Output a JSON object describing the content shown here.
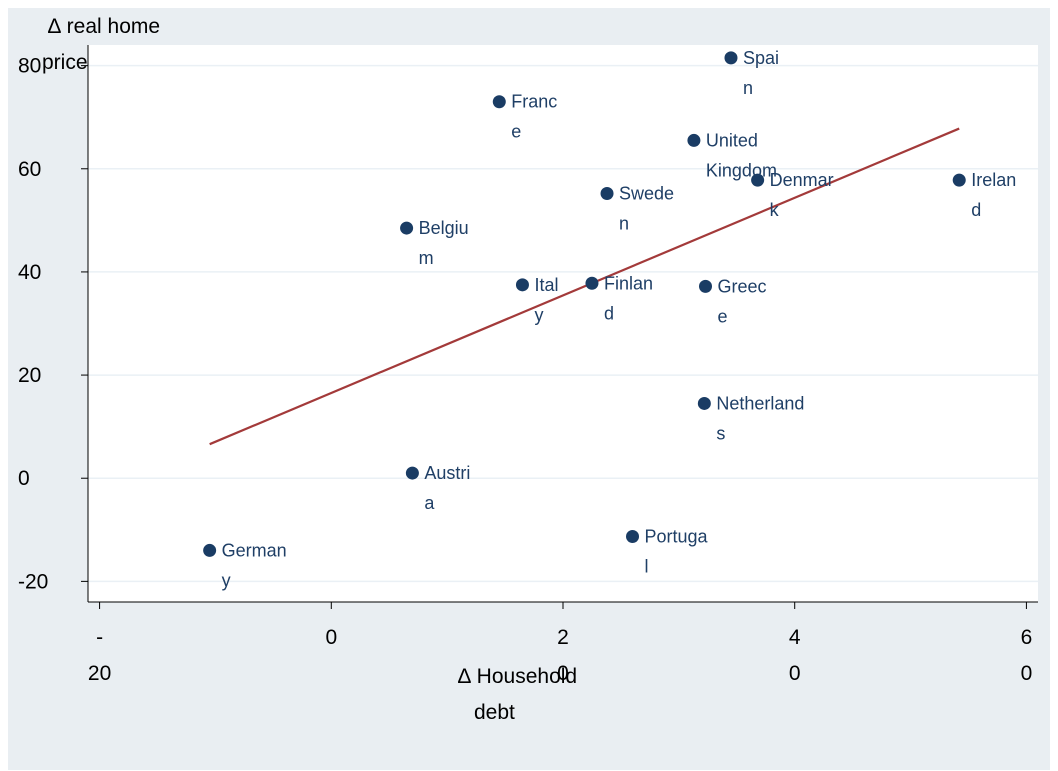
{
  "chart_data": {
    "type": "scatter",
    "title": "",
    "xlabel": "∆ Household debt",
    "ylabel": "∆ real home price",
    "xlim": [
      -21,
      61
    ],
    "ylim": [
      -24,
      84
    ],
    "x_ticks": [
      -20,
      0,
      20,
      40,
      60
    ],
    "y_ticks": [
      -20,
      0,
      20,
      40,
      60,
      80
    ],
    "grid": true,
    "colors": {
      "point": "#1a3c64",
      "fit_line": "#a33a3a",
      "grid": "#eaf0f5",
      "frame": "#e9eef2",
      "label": "#1f3f66"
    },
    "points": [
      {
        "name": "Spain",
        "x": 34.5,
        "y": 81.5
      },
      {
        "name": "France",
        "x": 14.5,
        "y": 73.0
      },
      {
        "name": "United Kingdom",
        "x": 31.3,
        "y": 65.5
      },
      {
        "name": "Denmark",
        "x": 36.8,
        "y": 57.8
      },
      {
        "name": "Ireland",
        "x": 54.2,
        "y": 57.8
      },
      {
        "name": "Sweden",
        "x": 23.8,
        "y": 55.2
      },
      {
        "name": "Belgium",
        "x": 6.5,
        "y": 48.5
      },
      {
        "name": "Italy",
        "x": 16.5,
        "y": 37.5
      },
      {
        "name": "Finland",
        "x": 22.5,
        "y": 37.8
      },
      {
        "name": "Greece",
        "x": 32.3,
        "y": 37.2
      },
      {
        "name": "Netherlands",
        "x": 32.2,
        "y": 14.5
      },
      {
        "name": "Austria",
        "x": 7.0,
        "y": 1.0
      },
      {
        "name": "Portugal",
        "x": 26.0,
        "y": -11.3
      },
      {
        "name": "Germany",
        "x": -10.5,
        "y": -14.0
      }
    ],
    "fit_line": {
      "x": [
        -10.5,
        54.2
      ],
      "y": [
        6.6,
        67.8
      ]
    }
  }
}
